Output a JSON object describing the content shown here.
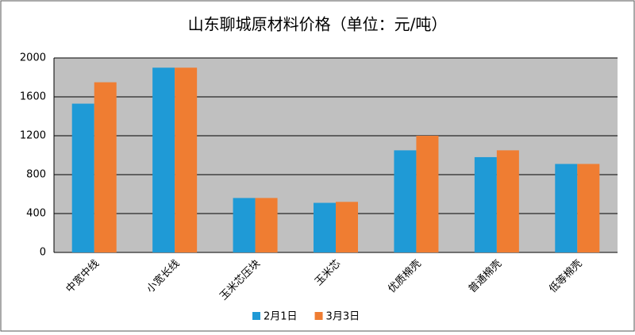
{
  "chart_data": {
    "type": "bar",
    "title": "山东聊城原材料价格（单位：元/吨）",
    "categories": [
      "中宽中线",
      "小宽长线",
      "玉米芯压块",
      "玉米芯",
      "优质棉壳",
      "普通棉壳",
      "低等棉壳"
    ],
    "series": [
      {
        "name": "2月1日",
        "color": "#1f9ad6",
        "values": [
          1530,
          1900,
          560,
          510,
          1050,
          980,
          910
        ]
      },
      {
        "name": "3月3日",
        "color": "#ef7d32",
        "values": [
          1750,
          1900,
          560,
          520,
          1200,
          1050,
          910
        ]
      }
    ],
    "ylim": [
      0,
      2000
    ],
    "yticks": [
      0,
      400,
      800,
      1200,
      1600,
      2000
    ],
    "grid": true
  }
}
